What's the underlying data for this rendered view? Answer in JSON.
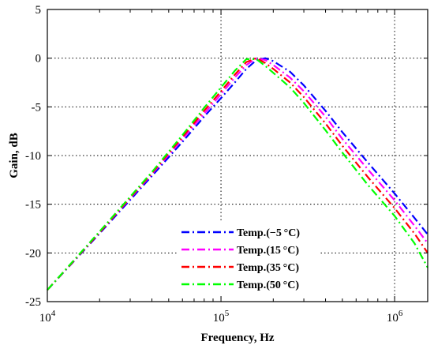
{
  "chart_data": {
    "type": "line",
    "x_scale": "log",
    "xlabel": "Frequency, Hz",
    "ylabel": "Gain, dB",
    "xlim": [
      10000,
      1550000
    ],
    "ylim": [
      -25,
      5
    ],
    "grid": true,
    "legend_position": "bottom-center",
    "x_ticks": [
      {
        "value": 10000,
        "base": "10",
        "exp": "4"
      },
      {
        "value": 100000,
        "base": "10",
        "exp": "5"
      },
      {
        "value": 1000000,
        "base": "10",
        "exp": "6"
      }
    ],
    "y_ticks": [
      {
        "value": 5,
        "label": "5"
      },
      {
        "value": 0,
        "label": "0"
      },
      {
        "value": -5,
        "label": "-5"
      },
      {
        "value": -10,
        "label": "-10"
      },
      {
        "value": -15,
        "label": "-15"
      },
      {
        "value": -20,
        "label": "-20"
      },
      {
        "value": -25,
        "label": "-25"
      }
    ],
    "series": [
      {
        "name": "Temp.(−5 °C)",
        "color": "#0000ff",
        "x": [
          10000,
          20000,
          40000,
          60000,
          80000,
          100000,
          120000,
          140000,
          160000,
          180000,
          200000,
          250000,
          300000,
          400000,
          500000,
          700000,
          1000000,
          1300000,
          1550000
        ],
        "y": [
          -23.8,
          -18.0,
          -12.1,
          -8.6,
          -6.0,
          -4.1,
          -2.5,
          -1.1,
          -0.2,
          0.0,
          -0.3,
          -1.4,
          -2.8,
          -5.4,
          -7.6,
          -10.7,
          -13.9,
          -16.4,
          -18.1
        ]
      },
      {
        "name": "Temp.(15 °C)",
        "color": "#ff00ff",
        "x": [
          10000,
          20000,
          40000,
          60000,
          80000,
          100000,
          120000,
          140000,
          160000,
          180000,
          200000,
          250000,
          300000,
          400000,
          500000,
          700000,
          1000000,
          1300000,
          1550000
        ],
        "y": [
          -23.8,
          -17.9,
          -11.9,
          -8.3,
          -5.7,
          -3.7,
          -2.0,
          -0.7,
          0.0,
          -0.2,
          -0.7,
          -2.0,
          -3.4,
          -6.0,
          -8.3,
          -11.4,
          -14.6,
          -17.2,
          -19.0
        ]
      },
      {
        "name": "Temp.(35 °C)",
        "color": "#ff0000",
        "x": [
          10000,
          20000,
          40000,
          60000,
          80000,
          100000,
          120000,
          140000,
          160000,
          180000,
          200000,
          250000,
          300000,
          400000,
          500000,
          700000,
          1000000,
          1300000,
          1550000
        ],
        "y": [
          -23.8,
          -17.9,
          -11.8,
          -8.1,
          -5.4,
          -3.4,
          -1.7,
          -0.4,
          0.0,
          -0.5,
          -1.1,
          -2.5,
          -4.0,
          -6.7,
          -9.0,
          -12.2,
          -15.4,
          -18.0,
          -20.0
        ]
      },
      {
        "name": "Temp.(50 °C)",
        "color": "#00ff00",
        "x": [
          10000,
          20000,
          40000,
          60000,
          80000,
          100000,
          120000,
          140000,
          160000,
          180000,
          200000,
          250000,
          300000,
          400000,
          500000,
          700000,
          1000000,
          1300000,
          1550000
        ],
        "y": [
          -23.8,
          -17.8,
          -11.7,
          -7.9,
          -5.1,
          -3.0,
          -1.3,
          -0.1,
          -0.1,
          -0.8,
          -1.5,
          -3.0,
          -4.6,
          -7.4,
          -9.7,
          -13.0,
          -16.2,
          -19.0,
          -21.5
        ]
      }
    ]
  }
}
